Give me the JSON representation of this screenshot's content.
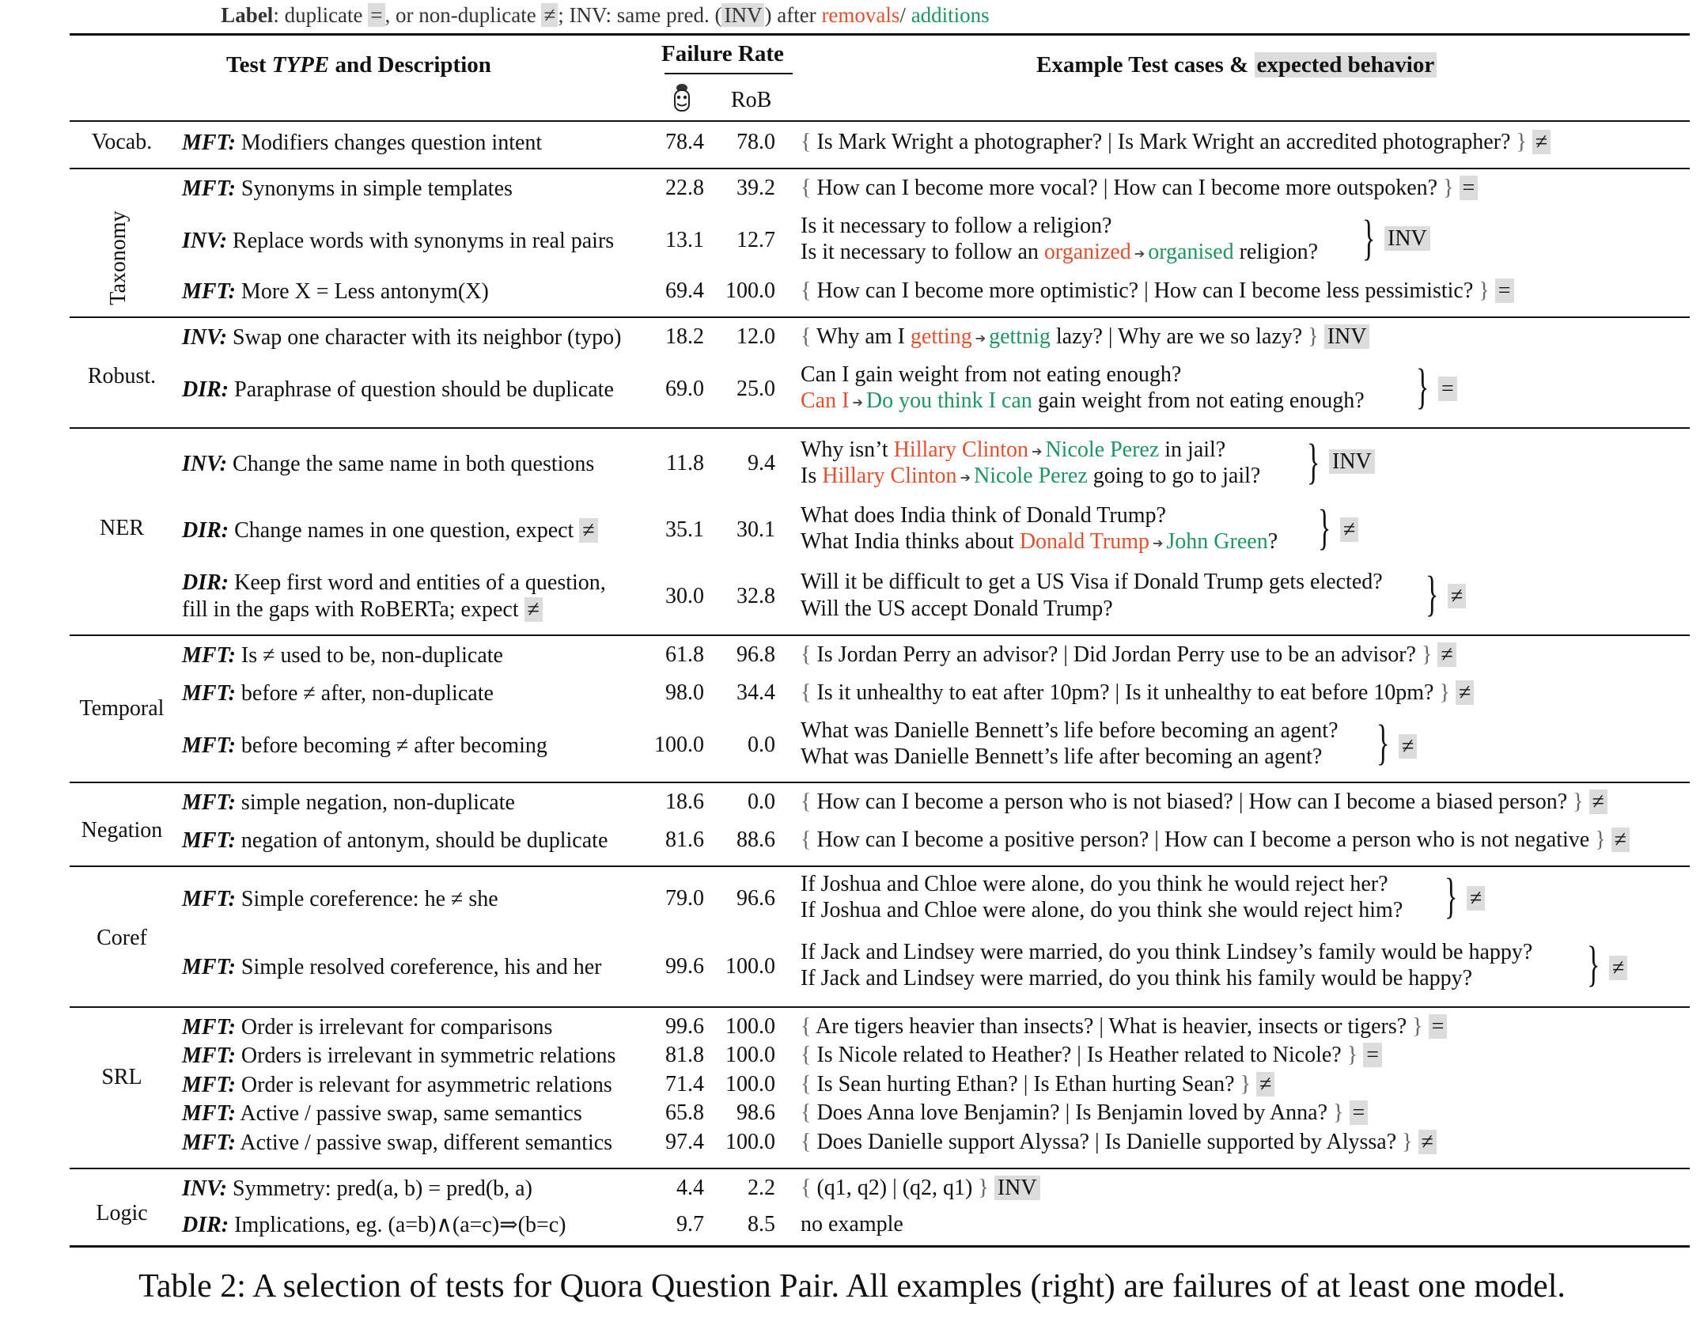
{
  "legend": {
    "label_word": "Label",
    "text1": ": duplicate",
    "eq": "=",
    "text2": ", or non-duplicate",
    "neq": "≠",
    "text3": "; INV: same pred. (",
    "inv": "INV",
    "text4": ") after",
    "removals": "removals",
    "slash": "/",
    "additions": "additions"
  },
  "header": {
    "test_type_pre": "Test ",
    "test_type_it": "TYPE",
    "test_type_post": " and Description",
    "failure_rate": "Failure Rate",
    "col_rob": "RoB",
    "examples_pre": "Example Test cases & ",
    "examples_hl": "expected behavior",
    "col_bert_icon": "bert-icon"
  },
  "categories": {
    "vocab": "Vocab.",
    "taxonomy": "Taxonomy",
    "robust": "Robust.",
    "ner": "NER",
    "temporal": "Temporal",
    "negation": "Negation",
    "coref": "Coref",
    "srl": "SRL",
    "logic": "Logic"
  },
  "rows": [
    {
      "type": "MFT:",
      "desc": "Modifiers changes question intent",
      "b": "78.4",
      "r": "78.0",
      "ex": "Is Mark Wright a photographer? | Is Mark Wright an accredited photographer?",
      "tag": "≠"
    },
    {
      "type": "MFT:",
      "desc": "Synonyms in simple templates",
      "b": "22.8",
      "r": "39.2",
      "ex": "How can I become more vocal? | How can I become more outspoken?",
      "tag": "="
    },
    {
      "type": "INV:",
      "desc": "Replace words with synonyms in real pairs",
      "b": "13.1",
      "r": "12.7",
      "l1": "Is it necessary to follow a religion?",
      "l2a": "Is it necessary to follow an",
      "l2rem": "organized",
      "l2add": "organised",
      "l2b": "religion?",
      "tag": "INV"
    },
    {
      "type": "MFT:",
      "desc": "More X = Less antonym(X)",
      "b": "69.4",
      "r": "100.0",
      "ex": "How can I become more optimistic? | How can I become less pessimistic?",
      "tag": "="
    },
    {
      "type": "INV:",
      "desc": "Swap one character with its neighbor (typo)",
      "b": "18.2",
      "r": "12.0",
      "pre": "Why am I",
      "rem": "getting",
      "add": "gettnig",
      "post": "lazy? | Why are we so lazy?",
      "tag": "INV"
    },
    {
      "type": "DIR:",
      "desc": "Paraphrase of question should be duplicate",
      "b": "69.0",
      "r": "25.0",
      "l1": "Can I gain weight from not eating enough?",
      "l2rem": "Can I",
      "l2add": "Do you think I can",
      "l2b": "gain weight from not eating enough?",
      "tag": "="
    },
    {
      "type": "INV:",
      "desc": "Change the same name in both questions",
      "b": "11.8",
      "r": "9.4",
      "l1a": "Why isn’t",
      "rem": "Hillary Clinton",
      "add": "Nicole Perez",
      "l1b": "in jail?",
      "l2a": "Is",
      "l2b": "going to go to jail?",
      "tag": "INV"
    },
    {
      "type": "DIR:",
      "desc": "Change names in one question, expect",
      "desc_tag": "≠",
      "b": "35.1",
      "r": "30.1",
      "l1": "What does India think of Donald Trump?",
      "l2a": "What India thinks about",
      "l2rem": "Donald Trump",
      "l2add": "John Green",
      "l2b": "?",
      "tag": "≠"
    },
    {
      "type": "DIR:",
      "desc": "Keep first word and entities of a question,",
      "desc2": "fill in the gaps with RoBERTa; expect",
      "desc_tag": "≠",
      "b": "30.0",
      "r": "32.8",
      "l1": "Will it be difficult to get a US Visa if Donald Trump gets elected?",
      "l2": "Will the US accept Donald Trump?",
      "tag": "≠"
    },
    {
      "type": "MFT:",
      "desc": "Is ≠ used to be, non-duplicate",
      "b": "61.8",
      "r": "96.8",
      "ex": "Is Jordan Perry an advisor? | Did Jordan Perry use to be an advisor?",
      "tag": "≠"
    },
    {
      "type": "MFT:",
      "desc": "before ≠ after, non-duplicate",
      "b": "98.0",
      "r": "34.4",
      "ex": "Is it unhealthy to eat after 10pm? | Is it unhealthy to eat before 10pm?",
      "tag": "≠"
    },
    {
      "type": "MFT:",
      "desc": "before becoming ≠ after becoming",
      "b": "100.0",
      "r": "0.0",
      "l1": "What was Danielle Bennett’s life before becoming an agent?",
      "l2": "What was Danielle Bennett’s life after becoming an agent?",
      "tag": "≠"
    },
    {
      "type": "MFT:",
      "desc": "simple negation, non-duplicate",
      "b": "18.6",
      "r": "0.0",
      "ex": "How can I become a person who is not biased? | How can I become a biased person?",
      "tag": "≠"
    },
    {
      "type": "MFT:",
      "desc": "negation of antonym, should be duplicate",
      "b": "81.6",
      "r": "88.6",
      "ex": "How can I become a positive person? | How can I become a person who is not negative",
      "tag": "≠"
    },
    {
      "type": "MFT:",
      "desc": "Simple coreference: he ≠ she",
      "b": "79.0",
      "r": "96.6",
      "l1": "If Joshua and Chloe were alone, do you think he would reject her?",
      "l2": "If Joshua and Chloe were alone, do you think she would reject him?",
      "tag": "≠"
    },
    {
      "type": "MFT:",
      "desc": "Simple resolved coreference, his and her",
      "b": "99.6",
      "r": "100.0",
      "l1": "If Jack and Lindsey were married, do you think Lindsey’s family would be happy?",
      "l2": "If Jack and Lindsey were married, do you think his family would be happy?",
      "tag": "≠"
    },
    {
      "type": "MFT:",
      "desc": "Order is irrelevant for comparisons",
      "b": "99.6",
      "r": "100.0",
      "ex": "Are tigers heavier than insects? | What is heavier, insects or tigers?",
      "tag": "="
    },
    {
      "type": "MFT:",
      "desc": "Orders is irrelevant in symmetric relations",
      "b": "81.8",
      "r": "100.0",
      "ex": "Is Nicole related to Heather? | Is Heather related to Nicole?",
      "tag": "="
    },
    {
      "type": "MFT:",
      "desc": "Order is relevant for asymmetric relations",
      "b": "71.4",
      "r": "100.0",
      "ex": "Is Sean hurting Ethan? | Is Ethan hurting Sean?",
      "tag": "≠"
    },
    {
      "type": "MFT:",
      "desc": "Active / passive swap, same semantics",
      "b": "65.8",
      "r": "98.6",
      "ex": "Does Anna love Benjamin? | Is Benjamin loved by Anna?",
      "tag": "="
    },
    {
      "type": "MFT:",
      "desc": "Active / passive swap, different semantics",
      "b": "97.4",
      "r": "100.0",
      "ex": "Does Danielle support Alyssa? | Is Danielle supported by Alyssa?",
      "tag": "≠"
    },
    {
      "type": "INV:",
      "desc": "Symmetry: pred(a, b) = pred(b, a)",
      "b": "4.4",
      "r": "2.2",
      "ex": "(q1, q2) | (q2, q1)",
      "tag": "INV"
    },
    {
      "type": "DIR:",
      "desc": "Implications, eg. (a=b)∧(a=c)⇒(b=c)",
      "b": "9.7",
      "r": "8.5",
      "ex_plain": "no example"
    }
  ],
  "caption": "Table 2: A selection of tests for Quora Question Pair. All examples (right) are failures of at least one model.",
  "colors": {
    "removal": "#e0502f",
    "addition": "#1e9460",
    "highlight": "#dcdcdc"
  }
}
